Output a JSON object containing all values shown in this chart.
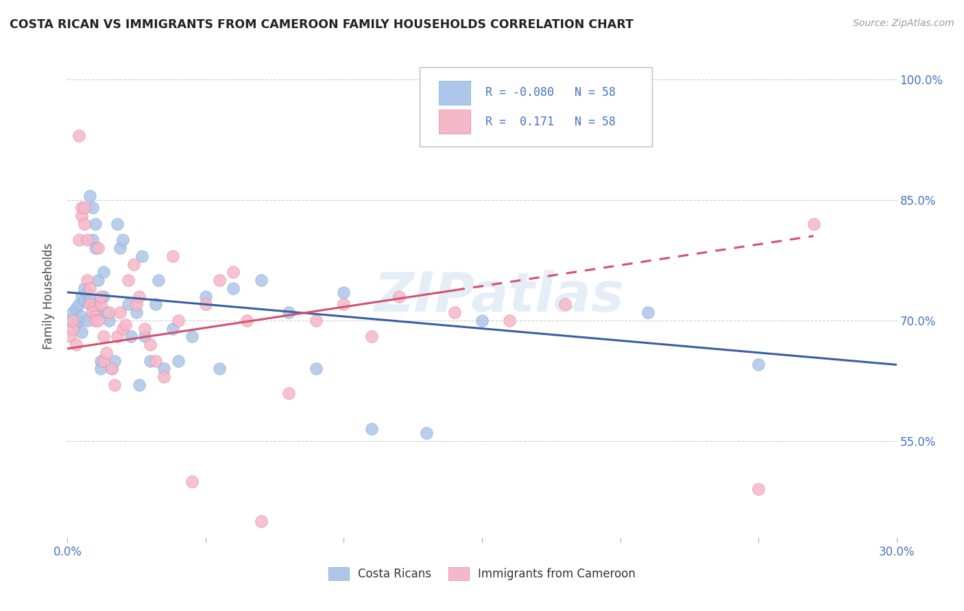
{
  "title": "COSTA RICAN VS IMMIGRANTS FROM CAMEROON FAMILY HOUSEHOLDS CORRELATION CHART",
  "source": "Source: ZipAtlas.com",
  "ylabel": "Family Households",
  "ytick_vals": [
    55.0,
    70.0,
    85.0,
    100.0
  ],
  "xmin": 0.0,
  "xmax": 0.3,
  "ymin": 43.0,
  "ymax": 103.0,
  "legend_blue_R": "-0.080",
  "legend_pink_R": " 0.171",
  "legend_N": "58",
  "blue_color": "#aec6e8",
  "pink_color": "#f5b8c8",
  "blue_line_color": "#3a5fa0",
  "pink_line_color": "#d45070",
  "watermark": "ZIPatlas",
  "blue_line_y0": 73.5,
  "blue_line_y1": 64.5,
  "pink_line_x0": 0.0,
  "pink_line_y0": 66.5,
  "pink_line_x1": 0.27,
  "pink_line_y1": 80.5,
  "costa_ricans_x": [
    0.001,
    0.002,
    0.003,
    0.003,
    0.004,
    0.004,
    0.005,
    0.005,
    0.005,
    0.006,
    0.006,
    0.007,
    0.007,
    0.008,
    0.008,
    0.009,
    0.009,
    0.01,
    0.01,
    0.01,
    0.011,
    0.011,
    0.012,
    0.012,
    0.013,
    0.013,
    0.014,
    0.015,
    0.016,
    0.017,
    0.018,
    0.019,
    0.02,
    0.022,
    0.023,
    0.025,
    0.026,
    0.027,
    0.028,
    0.03,
    0.032,
    0.033,
    0.035,
    0.038,
    0.04,
    0.045,
    0.05,
    0.055,
    0.06,
    0.07,
    0.08,
    0.09,
    0.1,
    0.11,
    0.13,
    0.15,
    0.21,
    0.25
  ],
  "costa_ricans_y": [
    70.0,
    71.0,
    69.5,
    71.5,
    70.0,
    72.0,
    73.0,
    70.5,
    68.5,
    72.5,
    74.0,
    70.0,
    73.5,
    72.5,
    85.5,
    84.0,
    80.0,
    82.0,
    79.0,
    72.0,
    71.0,
    75.0,
    65.0,
    64.0,
    73.0,
    76.0,
    71.0,
    70.0,
    64.0,
    65.0,
    82.0,
    79.0,
    80.0,
    72.0,
    68.0,
    71.0,
    62.0,
    78.0,
    68.0,
    65.0,
    72.0,
    75.0,
    64.0,
    69.0,
    65.0,
    68.0,
    73.0,
    64.0,
    74.0,
    75.0,
    71.0,
    64.0,
    73.5,
    56.5,
    56.0,
    70.0,
    71.0,
    64.5
  ],
  "cameroon_x": [
    0.001,
    0.002,
    0.002,
    0.003,
    0.004,
    0.004,
    0.005,
    0.005,
    0.006,
    0.006,
    0.007,
    0.007,
    0.008,
    0.008,
    0.009,
    0.009,
    0.01,
    0.01,
    0.011,
    0.011,
    0.012,
    0.012,
    0.013,
    0.013,
    0.014,
    0.015,
    0.016,
    0.017,
    0.018,
    0.019,
    0.02,
    0.021,
    0.022,
    0.024,
    0.025,
    0.026,
    0.028,
    0.03,
    0.032,
    0.035,
    0.038,
    0.04,
    0.045,
    0.05,
    0.055,
    0.06,
    0.065,
    0.07,
    0.08,
    0.09,
    0.1,
    0.11,
    0.12,
    0.14,
    0.16,
    0.18,
    0.25,
    0.27
  ],
  "cameroon_y": [
    68.0,
    69.0,
    70.0,
    67.0,
    93.0,
    80.0,
    84.0,
    83.0,
    84.0,
    82.0,
    80.0,
    75.0,
    74.0,
    72.0,
    71.5,
    71.0,
    70.5,
    70.0,
    79.0,
    70.0,
    72.0,
    73.0,
    68.0,
    65.0,
    66.0,
    71.0,
    64.0,
    62.0,
    68.0,
    71.0,
    69.0,
    69.5,
    75.0,
    77.0,
    72.0,
    73.0,
    69.0,
    67.0,
    65.0,
    63.0,
    78.0,
    70.0,
    50.0,
    72.0,
    75.0,
    76.0,
    70.0,
    45.0,
    61.0,
    70.0,
    72.0,
    68.0,
    73.0,
    71.0,
    70.0,
    72.0,
    49.0,
    82.0
  ]
}
